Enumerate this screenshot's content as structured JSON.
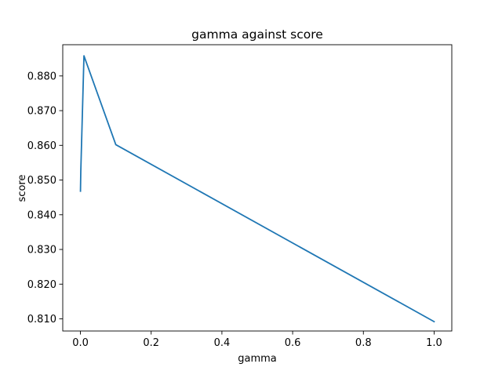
{
  "chart_data": {
    "type": "line",
    "title": "gamma against score",
    "xlabel": "gamma",
    "ylabel": "score",
    "xlim": [
      -0.05,
      1.05
    ],
    "ylim": [
      0.8065,
      0.889
    ],
    "xticks": [
      0.0,
      0.2,
      0.4,
      0.6,
      0.8,
      1.0
    ],
    "xtick_labels": [
      "0.0",
      "0.2",
      "0.4",
      "0.6",
      "0.8",
      "1.0"
    ],
    "yticks": [
      0.81,
      0.82,
      0.83,
      0.84,
      0.85,
      0.86,
      0.87,
      0.88
    ],
    "ytick_labels": [
      "0.810",
      "0.820",
      "0.830",
      "0.840",
      "0.850",
      "0.860",
      "0.870",
      "0.880"
    ],
    "grid": false,
    "series": [
      {
        "color": "#1f77b4",
        "x": [
          0.0001,
          0.001,
          0.01,
          0.1,
          1.0
        ],
        "y": [
          0.8468,
          0.8525,
          0.8858,
          0.8602,
          0.8092
        ]
      }
    ]
  }
}
